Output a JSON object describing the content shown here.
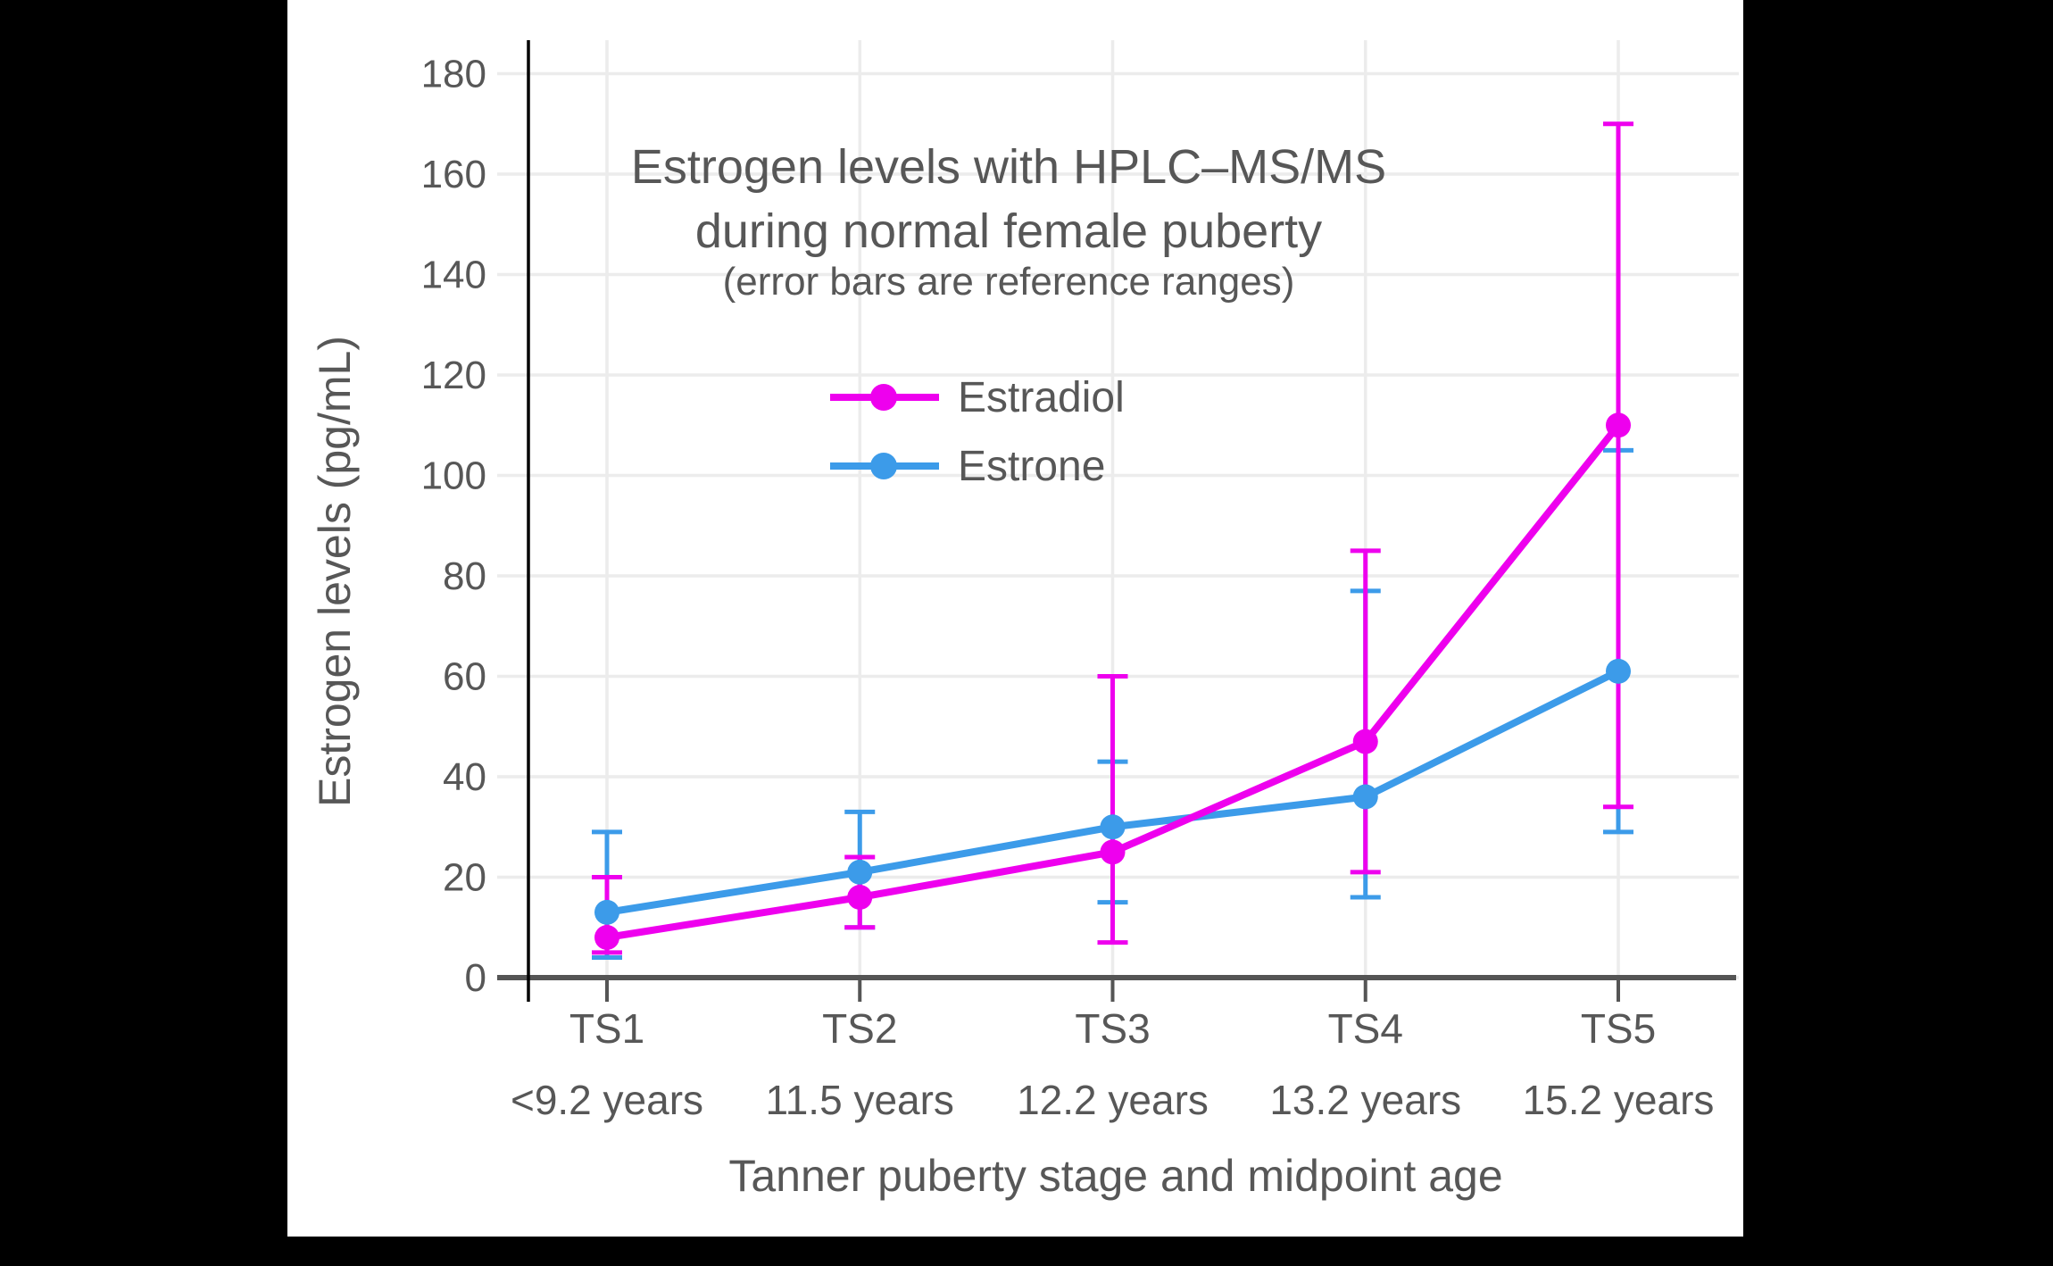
{
  "figure": {
    "background": "#000000",
    "canvas_background": "#ffffff"
  },
  "chart_data": {
    "type": "line",
    "title_line1": "Estrogen levels with HPLC–MS/MS",
    "title_line2": "during normal female puberty",
    "subtitle": "(error bars are reference ranges)",
    "xlabel": "Tanner puberty stage and midpoint age",
    "ylabel": "Estrogen levels (pg/mL)",
    "categories": [
      "TS1",
      "TS2",
      "TS3",
      "TS4",
      "TS5"
    ],
    "category_sublabels": [
      "<9.2 years",
      "11.5 years",
      "12.2 years",
      "13.2 years",
      "15.2 years"
    ],
    "y_ticks": [
      0,
      20,
      40,
      60,
      80,
      100,
      120,
      140,
      160,
      180
    ],
    "ylim": [
      0,
      187
    ],
    "grid": true,
    "legend_position": "upper-center-inside",
    "series": [
      {
        "name": "Estradiol",
        "color": "#ee00ee",
        "values": [
          8,
          16,
          25,
          47,
          110
        ],
        "error_low": [
          5,
          10,
          7,
          21,
          34
        ],
        "error_high": [
          20,
          24,
          60,
          85,
          170
        ]
      },
      {
        "name": "Estrone",
        "color": "#3c9be9",
        "values": [
          13,
          21,
          30,
          36,
          61
        ],
        "error_low": [
          4,
          10,
          15,
          16,
          29
        ],
        "error_high": [
          29,
          33,
          43,
          77,
          105
        ]
      }
    ],
    "colors": {
      "grid": "#ececec",
      "axis": "#555555",
      "spine": "#000000",
      "text": "#575757"
    }
  }
}
